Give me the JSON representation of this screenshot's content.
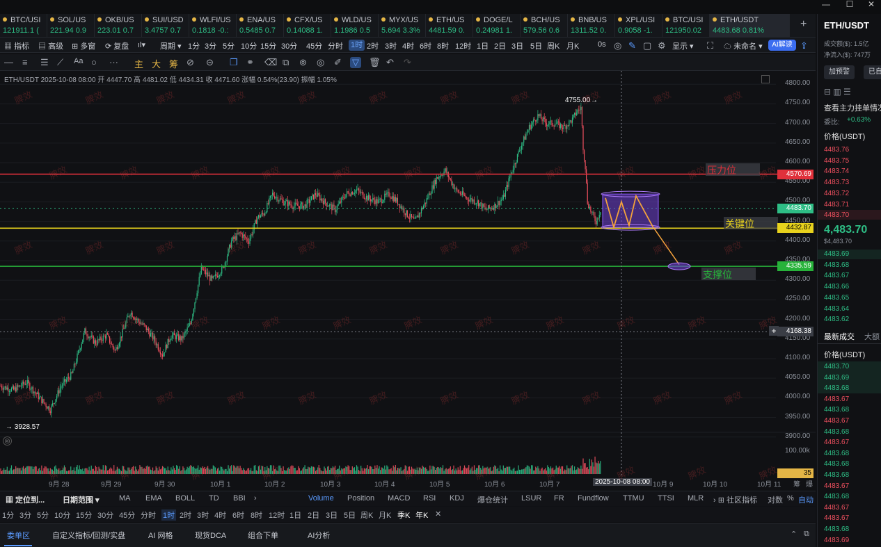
{
  "window": {
    "minimize": "—",
    "maximize": "☐",
    "close": "✕"
  },
  "tabs": [
    {
      "symbol": "BTC/USI",
      "price": "121911.1 ("
    },
    {
      "symbol": "SOL/US",
      "price": "221.94 0.9"
    },
    {
      "symbol": "OKB/US",
      "price": "223.01 0.7"
    },
    {
      "symbol": "SUI/USD",
      "price": "3.4757 0.7"
    },
    {
      "symbol": "WLFI/US",
      "price": "0.1818 -0.:"
    },
    {
      "symbol": "ENA/US",
      "price": "0.5485 0.7"
    },
    {
      "symbol": "CFX/US",
      "price": "0.14088 1."
    },
    {
      "symbol": "WLD/US",
      "price": "1.1986 0.5"
    },
    {
      "symbol": "MYX/US",
      "price": "5.694 3.3%"
    },
    {
      "symbol": "ETH/US",
      "price": "4481.59 0."
    },
    {
      "symbol": "DOGE/L",
      "price": "0.24981 1."
    },
    {
      "symbol": "BCH/US",
      "price": "579.56 0.6"
    },
    {
      "symbol": "BNB/US",
      "price": "1311.52 0."
    },
    {
      "symbol": "XPL/USI",
      "price": "0.9058 -1."
    },
    {
      "symbol": "BTC/USI",
      "price": "121950.02"
    },
    {
      "symbol": "ETH/USDT",
      "price": "4483.68 0.81%"
    }
  ],
  "tab_add": "+",
  "toolbar1": {
    "indicator": "指标",
    "advanced": "高级",
    "multi": "多窗",
    "replay": "复盘",
    "period": "周期",
    "periods": [
      "1分",
      "3分",
      "5分",
      "10分",
      "15分",
      "30分",
      "45分",
      "分时",
      "1时",
      "2时",
      "3时",
      "4时",
      "6时",
      "8时",
      "12时",
      "1日",
      "2日",
      "3日",
      "5日",
      "周K",
      "月K"
    ],
    "zero_s": "0s",
    "display": "显示",
    "unnamed": "未命名",
    "ai": "AI解读"
  },
  "toolbar2": {
    "main": "主",
    "big": "大",
    "chips": "筹",
    "draw_icons": [
      "line-tool-icon",
      "ray-tool-icon",
      "channel-icon",
      "trend-icon",
      "text-icon",
      "ellipse-icon",
      "more-icon"
    ]
  },
  "chart_info": "ETH/USDT  2025-10-08 08:00  开 4447.70  高 4481.02  低 4434.31  收 4471.60  涨幅 0.54%(23.90)  振幅 1.05%",
  "chart_data": {
    "type": "candlestick",
    "symbol": "ETH/USDT",
    "interval": "1时",
    "ylim": [
      3880,
      4820
    ],
    "y_ticks": [
      4800,
      4750,
      4700,
      4650,
      4600,
      4550,
      4500,
      4450,
      4400,
      4350,
      4300,
      4250,
      4200,
      4150,
      4100,
      4050,
      4000,
      3950,
      3900
    ],
    "x_labels": [
      "9月 28",
      "9月 29",
      "9月 30",
      "10月 1",
      "10月 2",
      "10月 3",
      "10月 4",
      "10月 5",
      "10月 6",
      "10月 7",
      "10月 9",
      "10月 10",
      "10月 11"
    ],
    "x_partial": "筹",
    "x_partial2": "爆",
    "cursor_time": "2025-10-08 08:00",
    "high_marker": "4755.00",
    "low_marker": "3928.57",
    "current_price": "4483.70",
    "cursor_price": "4168.38",
    "volume_label": "100.00k",
    "volume_value": "35",
    "lines": [
      {
        "name": "压力位",
        "price": "4570.69",
        "color": "#e0313b"
      },
      {
        "name": "关键位",
        "price": "4432.87",
        "color": "#e8d21d"
      },
      {
        "name": "支撑位",
        "price": "4335.59",
        "color": "#27b23a"
      }
    ],
    "anchors": [
      [
        0,
        4030
      ],
      [
        12,
        4020
      ],
      [
        24,
        4040
      ],
      [
        36,
        4000
      ],
      [
        46,
        3970
      ],
      [
        56,
        4030
      ],
      [
        66,
        4060
      ],
      [
        78,
        4170
      ],
      [
        88,
        4140
      ],
      [
        98,
        4160
      ],
      [
        106,
        4120
      ],
      [
        112,
        4160
      ],
      [
        120,
        4220
      ],
      [
        126,
        4200
      ],
      [
        134,
        4180
      ],
      [
        142,
        4150
      ],
      [
        150,
        4110
      ],
      [
        158,
        4160
      ],
      [
        168,
        4150
      ],
      [
        176,
        4190
      ],
      [
        186,
        4330
      ],
      [
        196,
        4300
      ],
      [
        206,
        4330
      ],
      [
        214,
        4400
      ],
      [
        222,
        4420
      ],
      [
        230,
        4400
      ],
      [
        238,
        4460
      ],
      [
        244,
        4470
      ],
      [
        252,
        4520
      ],
      [
        262,
        4500
      ],
      [
        272,
        4490
      ],
      [
        282,
        4490
      ],
      [
        292,
        4520
      ],
      [
        300,
        4500
      ],
      [
        310,
        4480
      ],
      [
        320,
        4520
      ],
      [
        330,
        4530
      ],
      [
        340,
        4510
      ],
      [
        350,
        4500
      ],
      [
        360,
        4520
      ],
      [
        368,
        4500
      ],
      [
        376,
        4470
      ],
      [
        384,
        4450
      ],
      [
        394,
        4500
      ],
      [
        404,
        4560
      ],
      [
        412,
        4580
      ],
      [
        422,
        4530
      ],
      [
        432,
        4510
      ],
      [
        442,
        4500
      ],
      [
        450,
        4480
      ],
      [
        458,
        4490
      ],
      [
        466,
        4510
      ],
      [
        474,
        4580
      ],
      [
        482,
        4640
      ],
      [
        490,
        4690
      ],
      [
        498,
        4720
      ],
      [
        506,
        4700
      ],
      [
        514,
        4700
      ],
      [
        522,
        4690
      ],
      [
        530,
        4710
      ],
      [
        534,
        4730
      ],
      [
        538,
        4740
      ],
      [
        540,
        4640
      ],
      [
        542,
        4590
      ],
      [
        544,
        4500
      ],
      [
        548,
        4470
      ],
      [
        552,
        4450
      ],
      [
        556,
        4480
      ]
    ]
  },
  "bottom": {
    "locate": "定位到...",
    "range": "日期范围",
    "indicators": [
      "MA",
      "EMA",
      "BOLL",
      "TD",
      "BBI"
    ],
    "subs": [
      "Volume",
      "Position",
      "MACD",
      "RSI",
      "KDJ",
      "爆仓统计",
      "LSUR",
      "FR",
      "Fundflow",
      "TTMU",
      "TTSI",
      "MLR"
    ],
    "community": "社区指标",
    "log": "对数",
    "pct": "%",
    "auto": "自动",
    "periods": [
      "1分",
      "3分",
      "5分",
      "10分",
      "15分",
      "30分",
      "45分",
      "分时",
      "1时",
      "2时",
      "3时",
      "4时",
      "6时",
      "8时",
      "12时",
      "1日",
      "2日",
      "3日",
      "5日",
      "周K",
      "月K",
      "季K",
      "年K"
    ],
    "close": "✕",
    "tabs": [
      "委单区",
      "自定义指标/回测/实盘",
      "AI 网格",
      "现货DCA",
      "组合下单",
      "AI分析"
    ]
  },
  "side": {
    "symbol": "ETH/USDT",
    "volume_label": "成交额($)",
    "volume": "1.5亿",
    "inflow_label": "净流入($)",
    "inflow": "747万",
    "alert": "加预警",
    "done": "已自",
    "main_view": "查看主力挂单情况",
    "ratio_label": "委比:",
    "ratio": "+0.63%",
    "price_header": "价格(USDT)",
    "asks": [
      "4483.76",
      "4483.75",
      "4483.74",
      "4483.73",
      "4483.72",
      "4483.71",
      "4483.70"
    ],
    "last": "4,483.70",
    "last_usd": "$4,483.70",
    "bids": [
      "4483.69",
      "4483.68",
      "4483.67",
      "4483.66",
      "4483.65",
      "4483.64",
      "4483.62"
    ],
    "trades_label": "最新成交",
    "big_label": "大额",
    "trades_header": "价格(USDT)",
    "trades": [
      {
        "p": "4483.70",
        "c": "grn"
      },
      {
        "p": "4483.69",
        "c": "grn"
      },
      {
        "p": "4483.68",
        "c": "grn"
      },
      {
        "p": "4483.67",
        "c": "red"
      },
      {
        "p": "4483.68",
        "c": "grn"
      },
      {
        "p": "4483.67",
        "c": "red"
      },
      {
        "p": "4483.68",
        "c": "grn"
      },
      {
        "p": "4483.67",
        "c": "red"
      },
      {
        "p": "4483.68",
        "c": "grn"
      },
      {
        "p": "4483.68",
        "c": "grn"
      },
      {
        "p": "4483.68",
        "c": "grn"
      },
      {
        "p": "4483.67",
        "c": "red"
      },
      {
        "p": "4483.68",
        "c": "grn"
      },
      {
        "p": "4483.67",
        "c": "red"
      },
      {
        "p": "4483.67",
        "c": "red"
      },
      {
        "p": "4483.68",
        "c": "grn"
      },
      {
        "p": "4483.69",
        "c": "red"
      }
    ]
  },
  "watermark": "脾效"
}
